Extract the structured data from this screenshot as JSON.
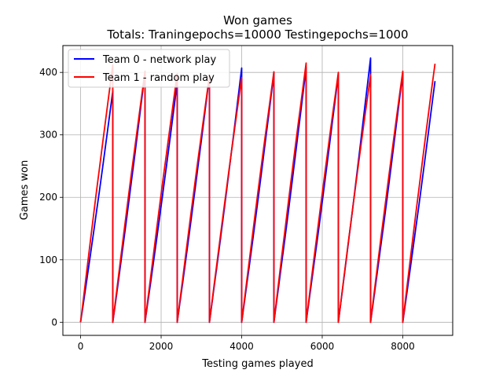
{
  "chart_data": {
    "type": "line",
    "title": "Won games",
    "subtitle": "Totals: Traningepochs=10000 Testingepochs=1000",
    "xlabel": "Testing games played",
    "ylabel": "Games won",
    "xlim": [
      -440,
      9240
    ],
    "ylim": [
      -21,
      443
    ],
    "xticks": [
      0,
      2000,
      4000,
      6000,
      8000
    ],
    "yticks": [
      0,
      100,
      200,
      300,
      400
    ],
    "xtick_labels": [
      "0",
      "2000",
      "4000",
      "6000",
      "8000"
    ],
    "ytick_labels": [
      "0",
      "100",
      "200",
      "300",
      "400"
    ],
    "grid": true,
    "legend_position": "top-left",
    "series": [
      {
        "name": "Team 0 - network play",
        "color": "#0000ff",
        "peaks": [
          370,
          400,
          384,
          395,
          407,
          399,
          408,
          397,
          423,
          399,
          386
        ]
      },
      {
        "name": "Team 1 - random play",
        "color": "#ff0000",
        "peaks": [
          412,
          402,
          398,
          395,
          392,
          401,
          415,
          400,
          396,
          402,
          414
        ]
      }
    ],
    "cycle_starts": [
      0,
      800,
      1600,
      2400,
      3200,
      4000,
      4800,
      5600,
      6400,
      7200,
      8000
    ],
    "cycle_ends": [
      800,
      1600,
      2400,
      3200,
      4000,
      4800,
      5600,
      6400,
      7200,
      8000,
      8800
    ]
  }
}
